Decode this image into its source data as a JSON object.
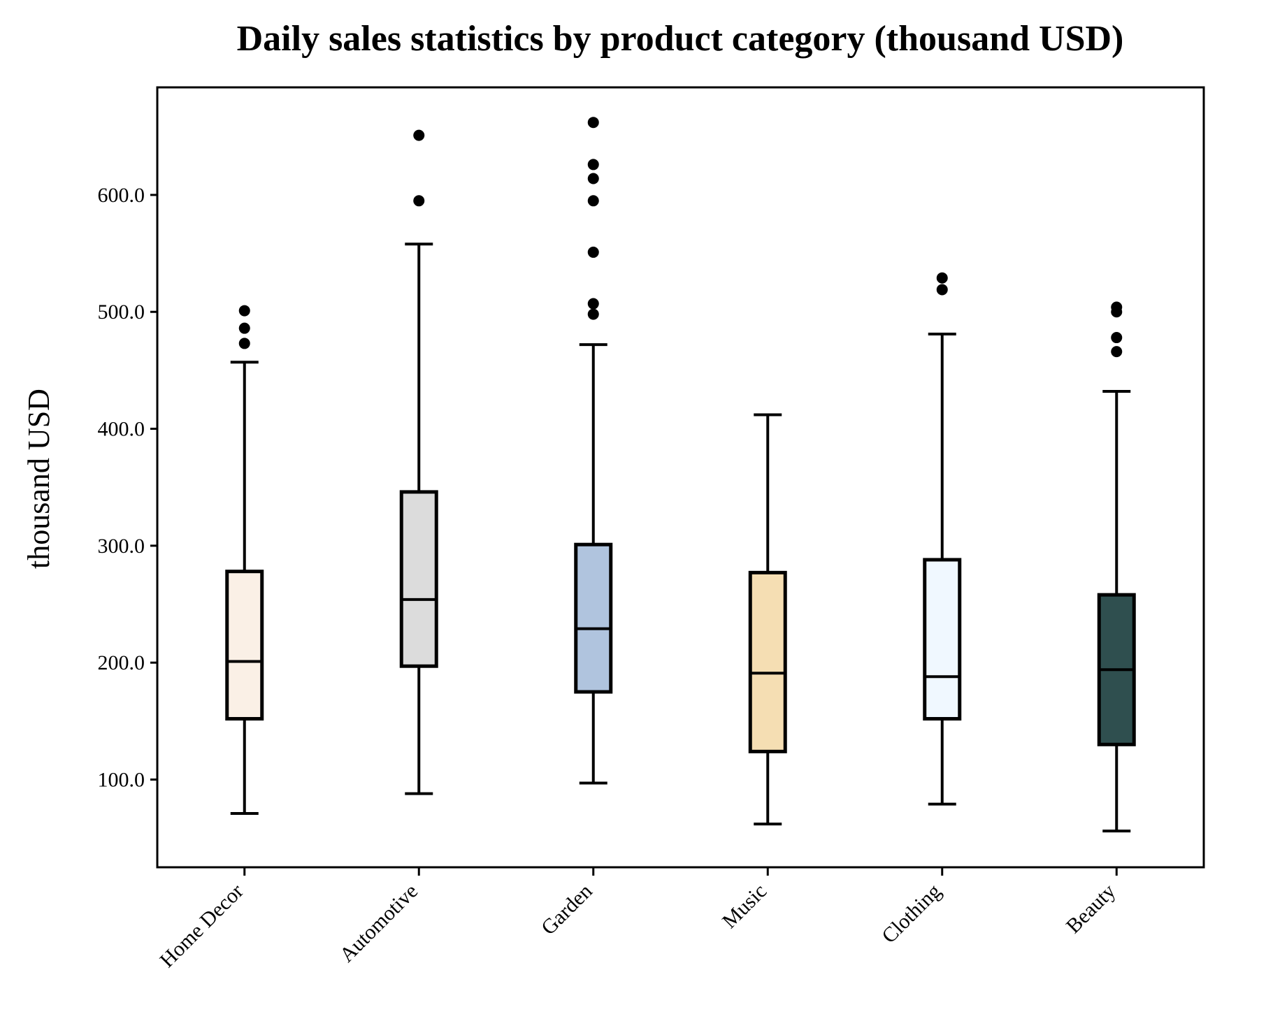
{
  "chart_data": {
    "type": "box",
    "title": "Daily sales statistics by product category (thousand USD)",
    "xlabel": "",
    "ylabel": "thousand USD",
    "ylim": [
      25,
      692
    ],
    "yticks": [
      100,
      200,
      300,
      400,
      500,
      600
    ],
    "ytick_labels": [
      "100.0",
      "200.0",
      "300.0",
      "400.0",
      "500.0",
      "600.0"
    ],
    "grid": false,
    "legend": "none",
    "categories": [
      "Home Decor",
      "Automotive",
      "Garden",
      "Music",
      "Clothing",
      "Beauty"
    ],
    "series": [
      {
        "category": "Home Decor",
        "color": "#FAF0E6",
        "whisker_low": 71,
        "q1": 152,
        "median": 201,
        "q3": 278,
        "whisker_high": 457,
        "outliers": [
          473,
          486,
          501
        ]
      },
      {
        "category": "Automotive",
        "color": "#DCDCDC",
        "whisker_low": 88,
        "q1": 197,
        "median": 254,
        "q3": 346,
        "whisker_high": 558,
        "outliers": [
          595,
          651
        ]
      },
      {
        "category": "Garden",
        "color": "#B0C4DE",
        "whisker_low": 97,
        "q1": 175,
        "median": 229,
        "q3": 301,
        "whisker_high": 472,
        "outliers": [
          498,
          507,
          551,
          595,
          614,
          626,
          662
        ]
      },
      {
        "category": "Music",
        "color": "#F5DEB3",
        "whisker_low": 62,
        "q1": 124,
        "median": 191,
        "q3": 277,
        "whisker_high": 412,
        "outliers": []
      },
      {
        "category": "Clothing",
        "color": "#F0F8FF",
        "whisker_low": 79,
        "q1": 152,
        "median": 188,
        "q3": 288,
        "whisker_high": 481,
        "outliers": [
          519,
          529
        ]
      },
      {
        "category": "Beauty",
        "color": "#2F4F4F",
        "whisker_low": 56,
        "q1": 130,
        "median": 194,
        "q3": 258,
        "whisker_high": 432,
        "outliers": [
          466,
          478,
          500,
          504
        ]
      }
    ]
  }
}
